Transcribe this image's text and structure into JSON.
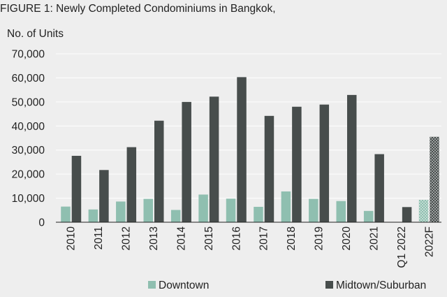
{
  "figure_title": "FIGURE 1: Newly Completed Condominiums in Bangkok,",
  "colors": {
    "background": "#eeeeee",
    "downtown": "#8fbfb0",
    "midtown": "#474d4c",
    "gridline": "#ffffff",
    "axis": "#222222"
  },
  "chart_data": {
    "type": "bar",
    "title": "FIGURE 1: Newly Completed Condominiums in Bangkok,",
    "ylabel": "No. of Units",
    "xlabel": "",
    "ylim": [
      0,
      70000
    ],
    "yticks": [
      0,
      10000,
      20000,
      30000,
      40000,
      50000,
      60000,
      70000
    ],
    "ytick_labels": [
      "0",
      "10,000",
      "20,000",
      "30,000",
      "40,000",
      "50,000",
      "60,000",
      "70,000"
    ],
    "categories": [
      "2010",
      "2011",
      "2012",
      "2013",
      "2014",
      "2015",
      "2016",
      "2017",
      "2018",
      "2019",
      "2020",
      "2021",
      "Q1 2022",
      "2022F"
    ],
    "forecast_categories": [
      "2022F"
    ],
    "grid": "horizontal",
    "legend_position": "bottom",
    "series": [
      {
        "name": "Downtown",
        "color": "#8fbfb0",
        "values": [
          6500,
          5300,
          8600,
          9700,
          5100,
          11500,
          9800,
          6400,
          12800,
          9700,
          8800,
          4700,
          0,
          9300
        ]
      },
      {
        "name": "Midtown/Suburban",
        "color": "#474d4c",
        "values": [
          27600,
          21700,
          31200,
          42200,
          50000,
          52200,
          60300,
          44200,
          48000,
          48900,
          52900,
          28300,
          6300,
          35500
        ]
      }
    ]
  }
}
